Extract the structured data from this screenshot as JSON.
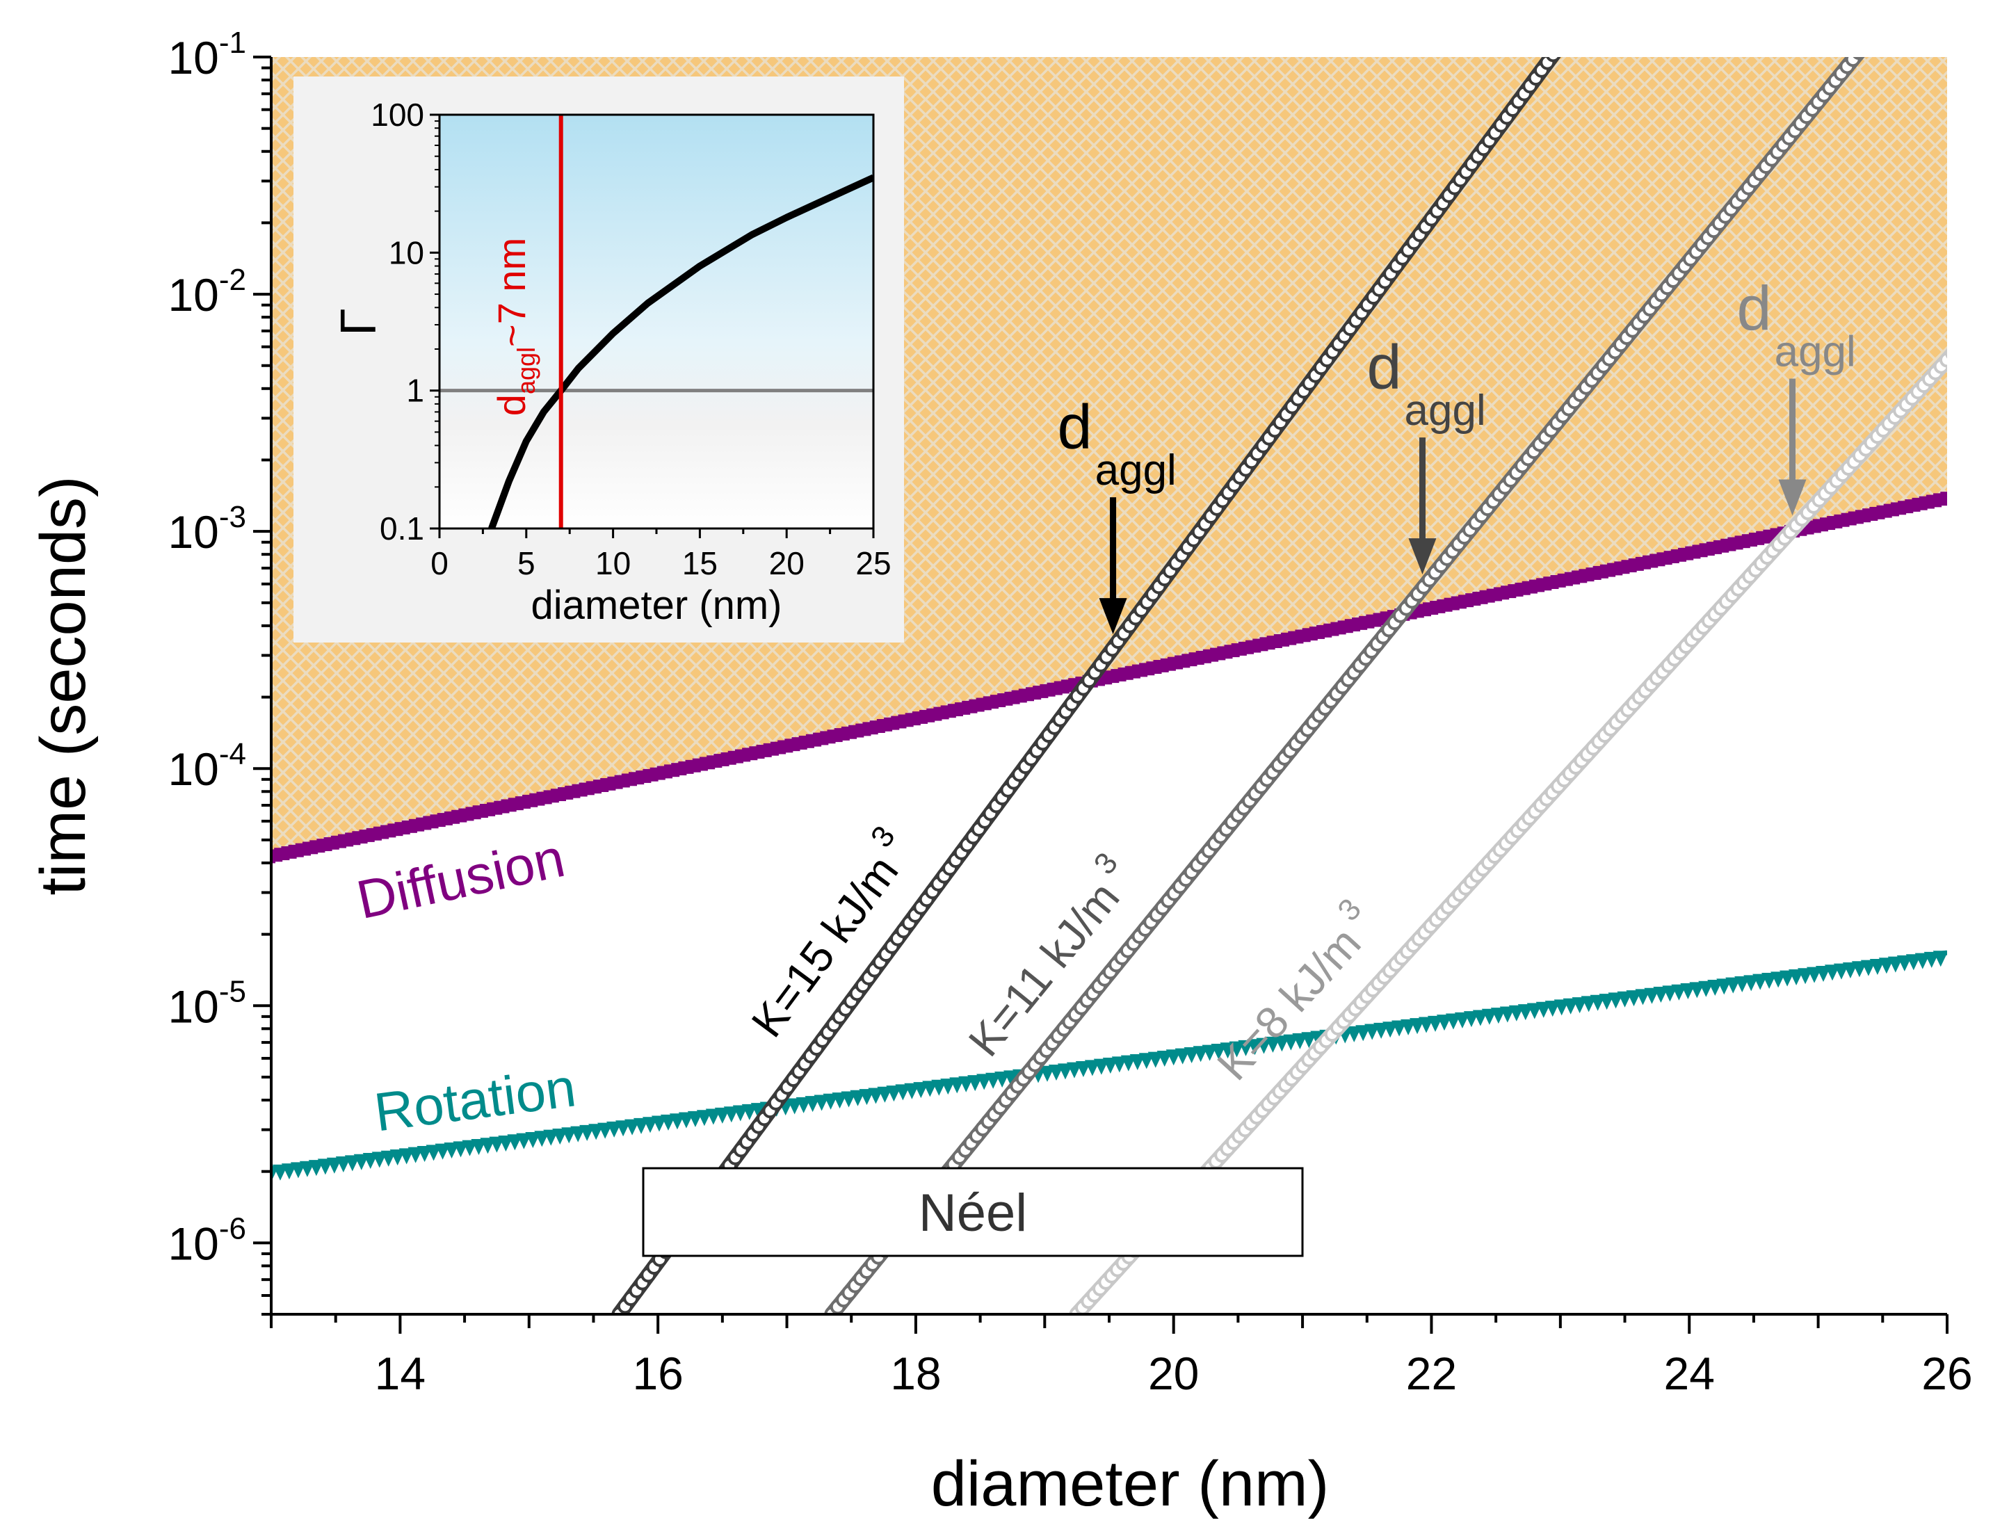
{
  "chart_data": {
    "type": "line",
    "yscale": "log",
    "xlabel": "diameter (nm)",
    "ylabel": "time (seconds)",
    "xlim": [
      13,
      26
    ],
    "ylim": [
      5e-07,
      0.1
    ],
    "x_ticks": [
      14,
      16,
      18,
      20,
      22,
      24,
      26
    ],
    "x_tick_labels": [
      "14",
      "16",
      "18",
      "20",
      "22",
      "24",
      "26"
    ],
    "y_ticks": [
      {
        "value": 1e-06,
        "mant": "10",
        "exp": "-6"
      },
      {
        "value": 1e-05,
        "mant": "10",
        "exp": "-5"
      },
      {
        "value": 0.0001,
        "mant": "10",
        "exp": "-4"
      },
      {
        "value": 0.001,
        "mant": "10",
        "exp": "-3"
      },
      {
        "value": 0.01,
        "mant": "10",
        "exp": "-2"
      },
      {
        "value": 0.1,
        "mant": "10",
        "exp": "-1"
      }
    ],
    "series": [
      {
        "name": "Diffusion",
        "color": "#800080",
        "marker": "square",
        "log_y_start": -4.37,
        "log_y_end": -2.86
      },
      {
        "name": "Rotation",
        "color": "#008B8B",
        "marker": "triangle-down",
        "log_y_start": -5.71,
        "log_y_end": -4.8
      },
      {
        "name": "K=15 kJ/m3",
        "label": "K=15 kJ/m",
        "sup": "3",
        "color": "#3a3a3a",
        "marker": "circle",
        "x_start": 15.7,
        "log_y_start": -6.3,
        "x_end": 19.53,
        "log_y_end": -3.49,
        "slope": 0.733
      },
      {
        "name": "K=11 kJ/m3",
        "label": "K=11 kJ/m",
        "sup": "3",
        "color": "#6e6e6e",
        "marker": "circle",
        "x_start": 17.35,
        "log_y_start": -6.3,
        "x_end": 21.93,
        "log_y_end": -3.24,
        "slope": 0.668
      },
      {
        "name": "K=8 kJ/m3",
        "label": "K=8 kJ/m",
        "sup": "3",
        "color": "#c8c8c8",
        "marker": "circle",
        "x_start": 19.25,
        "log_y_start": -6.3,
        "x_end": 24.8,
        "log_y_end": -2.99,
        "slope": 0.596
      }
    ],
    "annotations": [
      {
        "text": "d",
        "sub": "aggl",
        "x": 19.53,
        "color": "#000000"
      },
      {
        "text": "d",
        "sub": "aggl",
        "x": 21.93,
        "color": "#444444"
      },
      {
        "text": "d",
        "sub": "aggl",
        "x": 24.8,
        "color": "#888888"
      }
    ],
    "region_label": "Néel",
    "shaded_region": "orange crosshatch above Diffusion",
    "inset": {
      "type": "line",
      "yscale": "log",
      "xlabel": "diameter (nm)",
      "ylabel": "Γ",
      "xlim": [
        0,
        25
      ],
      "ylim": [
        0.1,
        100
      ],
      "x_ticks": [
        0,
        5,
        10,
        15,
        20,
        25
      ],
      "y_ticks": [
        0.1,
        1,
        10,
        100
      ],
      "y_tick_labels": [
        "0.1",
        "1",
        "10",
        "100"
      ],
      "curve": {
        "x": [
          3.0,
          4,
          5,
          6,
          7,
          8,
          10,
          12,
          15,
          18,
          20,
          22,
          25
        ],
        "y": [
          0.1,
          0.22,
          0.43,
          0.7,
          1.0,
          1.45,
          2.6,
          4.3,
          8.0,
          13.5,
          18.0,
          23.5,
          35.0
        ]
      },
      "threshold": 1,
      "marker_x": 7,
      "marker_label": "~7 nm",
      "marker_label_d": "d",
      "marker_label_sub": "aggl"
    }
  }
}
